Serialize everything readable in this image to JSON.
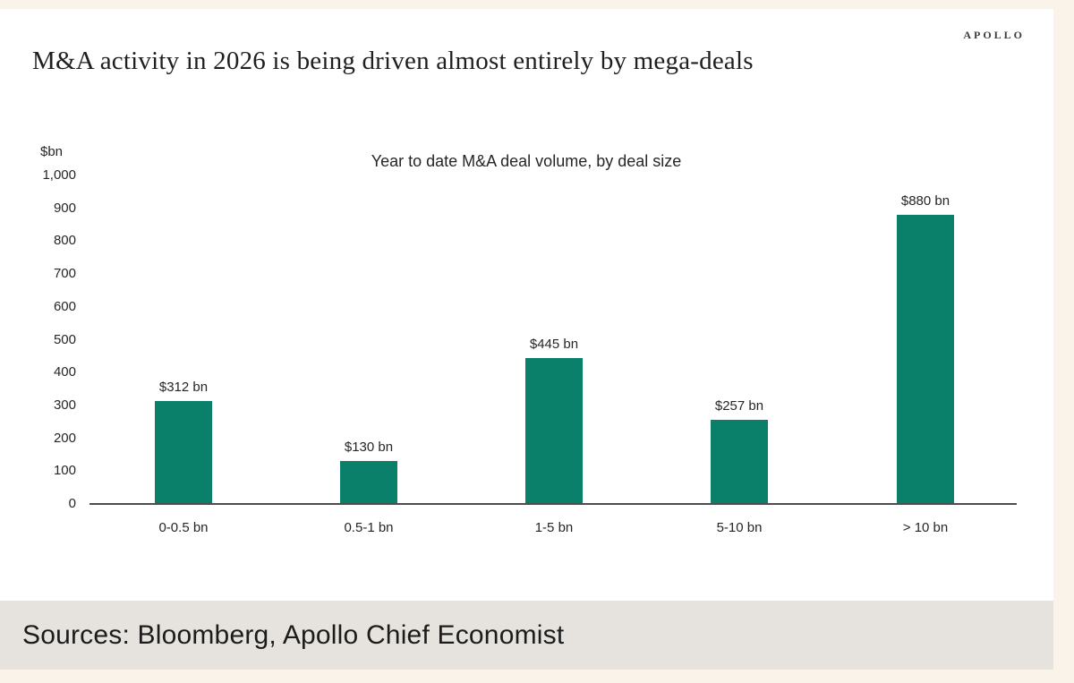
{
  "page": {
    "logo": "APOLLO",
    "title": "M&A activity in 2026 is being driven almost entirely by mega-deals",
    "source_note": "Sources: Bloomberg, Apollo Chief Economist"
  },
  "colors": {
    "background": "#FAF3EA",
    "panel": "#FFFFFF",
    "sources_band": "#E6E3DF",
    "bar": "#0A806A",
    "axis_line": "#4D4D4D"
  },
  "chart_data": {
    "type": "bar",
    "title": "Year to date M&A deal volume, by deal size",
    "unit_label": "$bn",
    "categories": [
      "0-0.5 bn",
      "0.5-1 bn",
      "1-5 bn",
      "5-10 bn",
      "> 10 bn"
    ],
    "values": [
      312,
      130,
      445,
      257,
      880
    ],
    "value_labels": [
      "$312 bn",
      "$130 bn",
      "$445 bn",
      "$257 bn",
      "$880 bn"
    ],
    "ylim": [
      0,
      1000
    ],
    "ytick_step": 100,
    "yticks": [
      "0",
      "100",
      "200",
      "300",
      "400",
      "500",
      "600",
      "700",
      "800",
      "900",
      "1,000"
    ],
    "bar_color": "#0A806A",
    "grid": false,
    "legend": null
  }
}
